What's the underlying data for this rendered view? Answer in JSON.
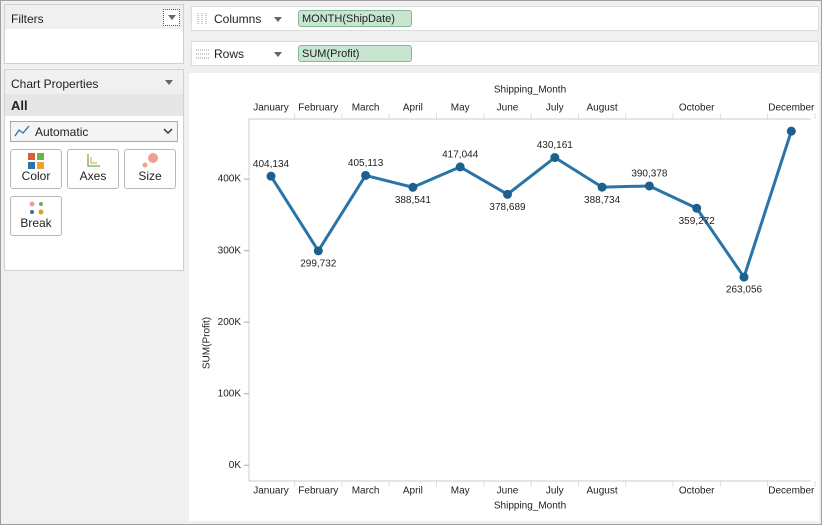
{
  "filters": {
    "title": "Filters"
  },
  "chart_properties": {
    "title": "Chart Properties",
    "scope": "All",
    "mark_type": "Automatic",
    "buttons": [
      "Color",
      "Axes",
      "Size",
      "Break"
    ]
  },
  "shelves": {
    "columns": {
      "label": "Columns",
      "pill": "MONTH(ShipDate)"
    },
    "rows": {
      "label": "Rows",
      "pill": "SUM(Profit)"
    }
  },
  "chart_data": {
    "type": "line",
    "x_label": "Shipping_Month",
    "y_label": "SUM(Profit)",
    "categories": [
      "January",
      "February",
      "March",
      "April",
      "May",
      "June",
      "July",
      "August",
      null,
      "October",
      null,
      "December"
    ],
    "values": [
      404134,
      299732,
      405113,
      388541,
      417044,
      378689,
      430161,
      388734,
      390378,
      359272,
      263056,
      467000
    ],
    "value_labels": [
      "404,134",
      "299,732",
      "405,113",
      "388,541",
      "417,044",
      "378,689",
      "430,161",
      "388,734",
      "390,378",
      "359,272",
      "263,056",
      null
    ],
    "color": "#2a74a8",
    "marker_color": "#1d5f8f",
    "ylim": [
      -22000,
      484000
    ],
    "yticks": [
      {
        "value": 0,
        "label": "0K"
      },
      {
        "value": 100000,
        "label": "100K"
      },
      {
        "value": 200000,
        "label": "200K"
      },
      {
        "value": 300000,
        "label": "300K"
      },
      {
        "value": 400000,
        "label": "400K"
      }
    ],
    "grid": false
  }
}
